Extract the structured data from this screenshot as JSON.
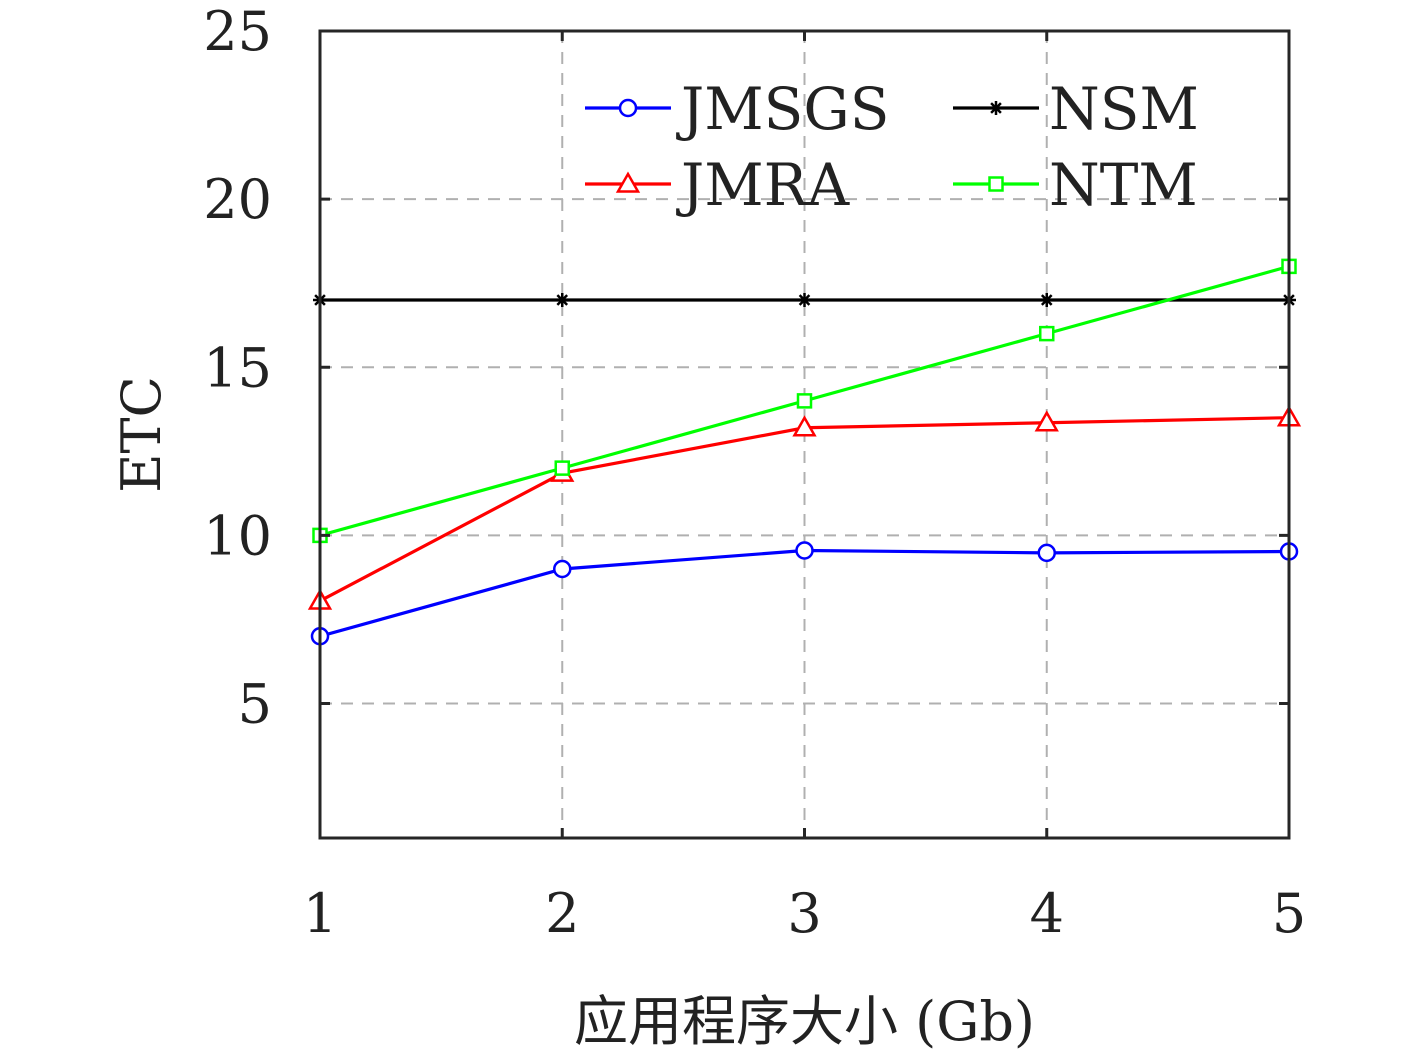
{
  "chart_data": {
    "type": "line",
    "title": "",
    "xlabel": "应用程序大小 (Gb)",
    "ylabel": "ETC",
    "x": [
      1,
      2,
      3,
      4,
      5
    ],
    "xlim": [
      1,
      5
    ],
    "ylim": [
      1,
      25
    ],
    "xticks": [
      "1",
      "2",
      "3",
      "4",
      "5"
    ],
    "yticks": [
      "5",
      "10",
      "15",
      "20",
      "25"
    ],
    "ytick_values": [
      5,
      10,
      15,
      20,
      25
    ],
    "grid": true,
    "legend_position": "top-right",
    "series": [
      {
        "name": "JMSGS",
        "values": [
          7.0,
          9.0,
          9.55,
          9.48,
          9.52
        ],
        "color": "#0000ff",
        "marker": "circle"
      },
      {
        "name": "NSM",
        "values": [
          17.0,
          17.0,
          17.0,
          17.0,
          17.0
        ],
        "color": "#000000",
        "marker": "asterisk"
      },
      {
        "name": "JMRA",
        "values": [
          8.05,
          11.85,
          13.2,
          13.35,
          13.5
        ],
        "color": "#ff0000",
        "marker": "triangle"
      },
      {
        "name": "NTM",
        "values": [
          10.0,
          12.0,
          14.0,
          16.0,
          18.0
        ],
        "color": "#00ff00",
        "marker": "square"
      }
    ]
  }
}
